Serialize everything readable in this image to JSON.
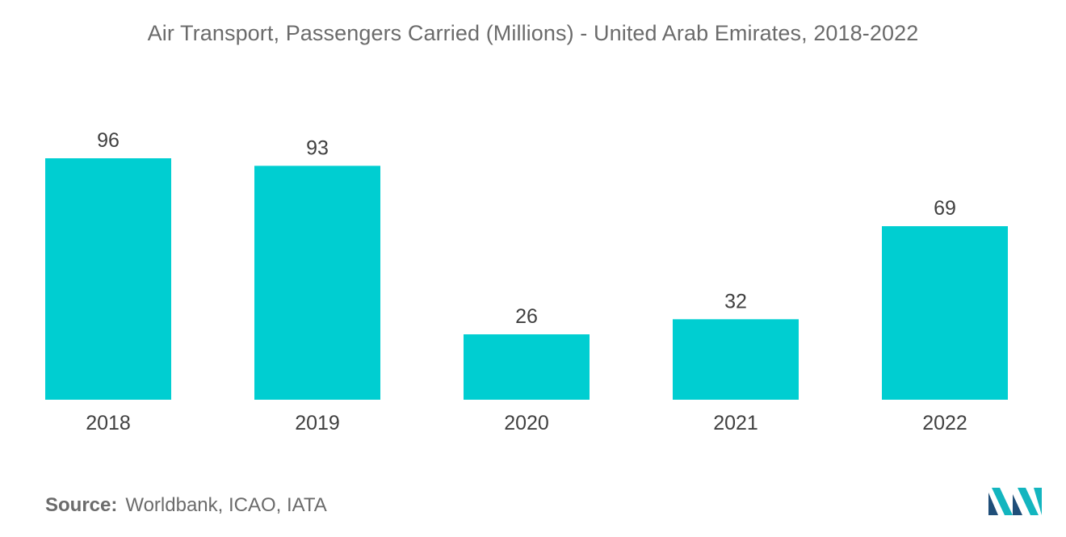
{
  "chart_data": {
    "type": "bar",
    "title": "Air Transport, Passengers Carried (Millions) - United Arab Emirates, 2018-2022",
    "categories": [
      "2018",
      "2019",
      "2020",
      "2021",
      "2022"
    ],
    "values": [
      96,
      93,
      26,
      32,
      69
    ],
    "value_labels": [
      "96",
      "93",
      "26",
      "32",
      "69"
    ],
    "xlabel": "",
    "ylabel": "",
    "ylim": [
      0,
      96
    ],
    "grid": false,
    "legend": "none"
  },
  "colors": {
    "bar": "#00ced1",
    "title_text": "#6b6b6b",
    "label_text": "#404040",
    "logo_dark": "#1f4e79",
    "logo_teal": "#13b5bf"
  },
  "source": {
    "label": "Source:",
    "text": "Worldbank, ICAO, IATA"
  },
  "logo": {
    "icon": "mordor-intelligence-logo-icon"
  }
}
